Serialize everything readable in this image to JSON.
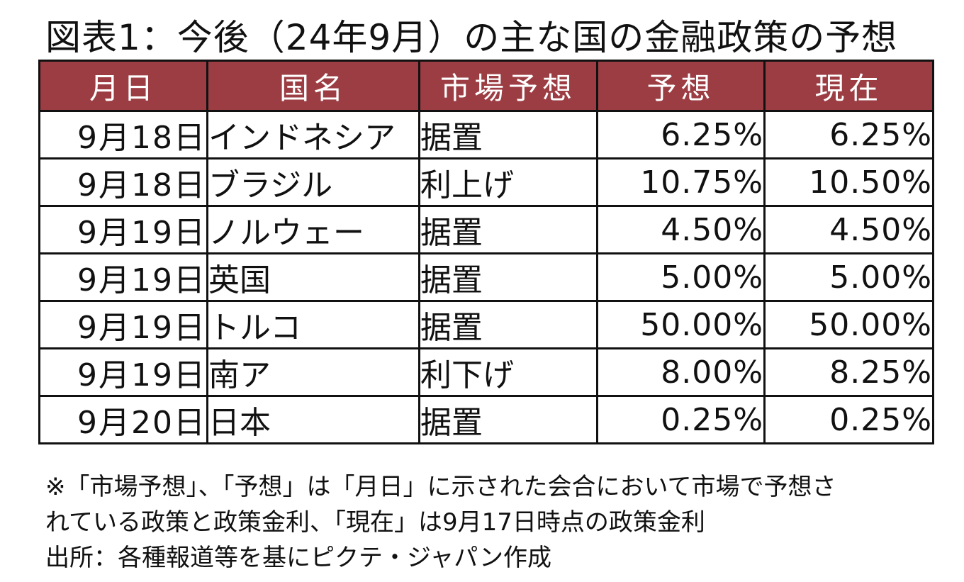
{
  "title": "図表1：今後（24年9月）の主な国の金融政策の予想",
  "table": {
    "headers": [
      "月日",
      "国名",
      "市場予想",
      "予想",
      "現在"
    ],
    "rows": [
      {
        "date": "9月18日",
        "country": "インドネシア",
        "expectation": "据置",
        "forecast": "6.25%",
        "current": "6.25%"
      },
      {
        "date": "9月18日",
        "country": "ブラジル",
        "expectation": "利上げ",
        "forecast": "10.75%",
        "current": "10.50%"
      },
      {
        "date": "9月19日",
        "country": "ノルウェー",
        "expectation": "据置",
        "forecast": "4.50%",
        "current": "4.50%"
      },
      {
        "date": "9月19日",
        "country": "英国",
        "expectation": "据置",
        "forecast": "5.00%",
        "current": "5.00%"
      },
      {
        "date": "9月19日",
        "country": "トルコ",
        "expectation": "据置",
        "forecast": "50.00%",
        "current": "50.00%"
      },
      {
        "date": "9月19日",
        "country": "南ア",
        "expectation": "利下げ",
        "forecast": "8.00%",
        "current": "8.25%"
      },
      {
        "date": "9月20日",
        "country": "日本",
        "expectation": "据置",
        "forecast": "0.25%",
        "current": "0.25%"
      }
    ]
  },
  "notes": {
    "line1": "※「市場予想」、「予想」は「月日」に示された会合において市場で予想さ",
    "line2": "れている政策と政策金利、「現在」は9月17日時点の政策金利",
    "source": "出所：各種報道等を基にピクテ・ジャパン作成"
  },
  "colors": {
    "header_bg": "#9c3d43",
    "header_text": "#ffffff",
    "border": "#111111"
  }
}
